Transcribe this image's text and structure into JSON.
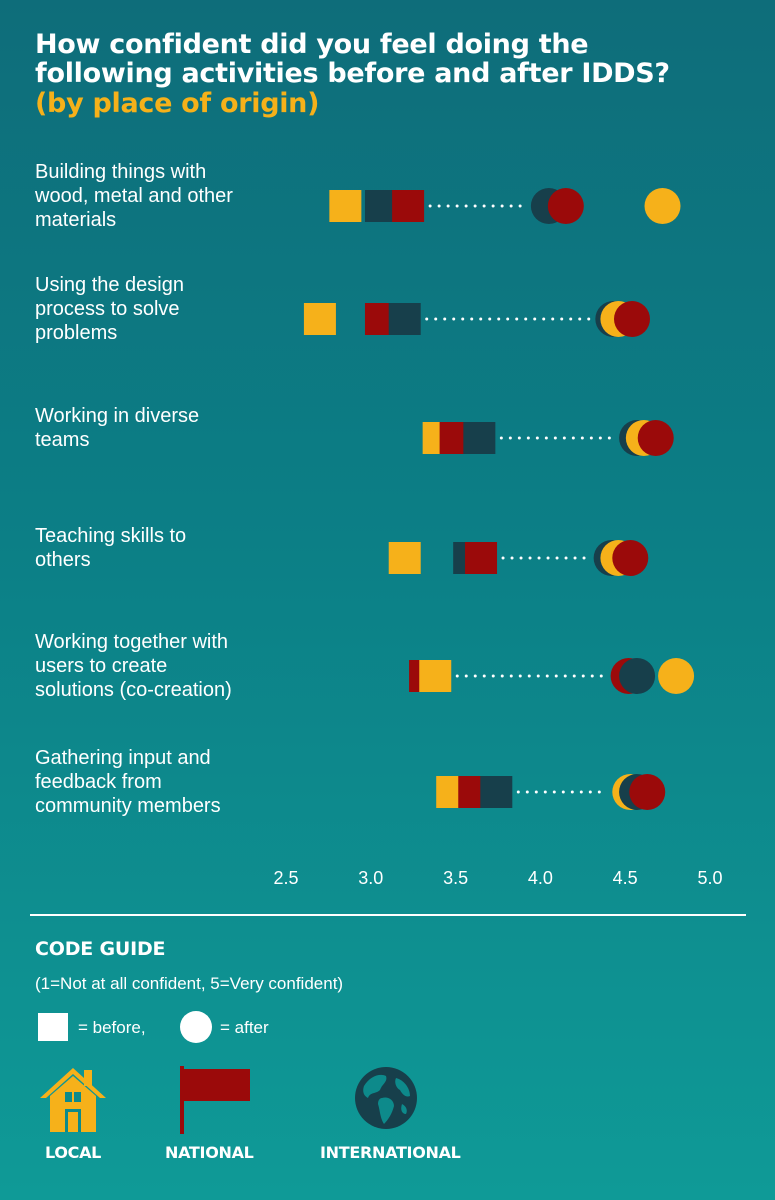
{
  "title": {
    "line1": "How confident did you feel doing the",
    "line2": "following activities before and after IDDS?",
    "subtitle": "(by place of origin)"
  },
  "colors": {
    "local": "#f6b11a",
    "national": "#9b0a0a",
    "international": "#173f4b",
    "dots": "#ffffff"
  },
  "chart_data": {
    "type": "dot-plot",
    "x_ticks": [
      "2.5",
      "3.0",
      "3.5",
      "4.0",
      "4.5",
      "5.0"
    ],
    "xlim": [
      2.5,
      5.0
    ],
    "grid": false,
    "categories": [
      {
        "label_lines": [
          "Building things with",
          "wood, metal and other",
          "materials"
        ],
        "before": {
          "local": 2.85,
          "international": 3.06,
          "national": 3.22
        },
        "after": {
          "international": 4.05,
          "national": 4.15,
          "local": 4.72
        }
      },
      {
        "label_lines": [
          "Using the design",
          "process to solve",
          "problems"
        ],
        "before": {
          "local": 2.7,
          "national": 3.06,
          "international": 3.2
        },
        "after": {
          "international": 4.43,
          "local": 4.46,
          "national": 4.54
        }
      },
      {
        "label_lines": [
          "Working in diverse",
          "teams"
        ],
        "before": {
          "local": 3.4,
          "national": 3.5,
          "international": 3.64
        },
        "after": {
          "international": 4.57,
          "local": 4.61,
          "national": 4.68
        }
      },
      {
        "label_lines": [
          "Teaching skills to",
          "others"
        ],
        "before": {
          "local": 3.2,
          "international": 3.58,
          "national": 3.65
        },
        "after": {
          "international": 4.42,
          "local": 4.46,
          "national": 4.53
        }
      },
      {
        "label_lines": [
          "Working together with",
          "users to create",
          "solutions (co-creation)"
        ],
        "before": {
          "national": 3.32,
          "local": 3.38
        },
        "after": {
          "national": 4.52,
          "international": 4.57,
          "local": 4.8
        }
      },
      {
        "label_lines": [
          "Gathering input and",
          "feedback from",
          "community members"
        ],
        "before": {
          "local": 3.48,
          "national": 3.61,
          "international": 3.74
        },
        "after": {
          "local": 4.53,
          "international": 4.57,
          "national": 4.63
        }
      }
    ]
  },
  "guide": {
    "title": "CODE GUIDE",
    "scale_note": "(1=Not at all confident, 5=Very confident)",
    "before_label": "= before,",
    "after_label": "= after",
    "local_label": "LOCAL",
    "national_label": "NATIONAL",
    "international_label": "INTERNATIONAL",
    "local_icon": "house-icon",
    "national_icon": "flag-icon",
    "international_icon": "globe-icon"
  }
}
